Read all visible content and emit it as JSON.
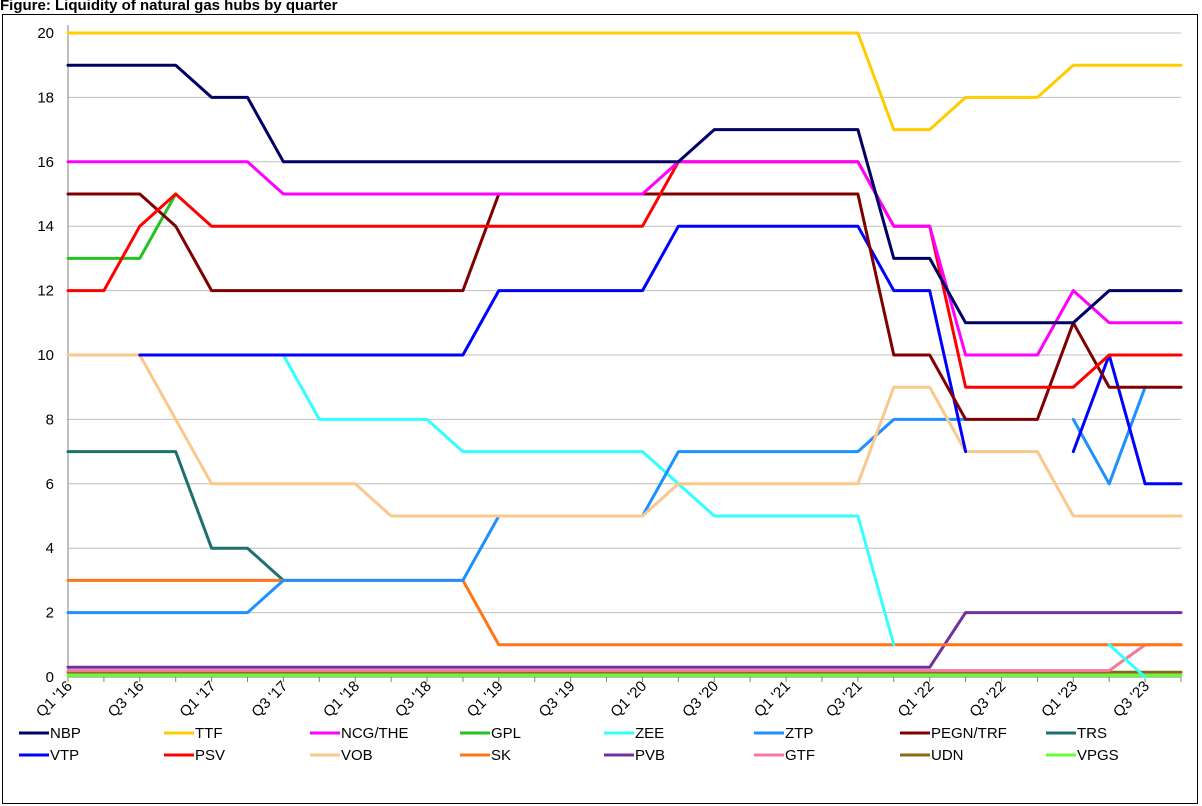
{
  "caption": "Figure: Liquidity of natural gas hubs by quarter",
  "chart_data": {
    "type": "line",
    "xlabel": "",
    "ylabel": "",
    "ylim": [
      0,
      20
    ],
    "yticks": [
      0,
      2,
      4,
      6,
      8,
      10,
      12,
      14,
      16,
      18,
      20
    ],
    "grid": "horizontal",
    "legend_placement": "bottom",
    "x": [
      "Q1 '16",
      "Q2 '16",
      "Q3 '16",
      "Q4 '16",
      "Q1 '17",
      "Q2 '17",
      "Q3 '17",
      "Q4 '17",
      "Q1 '18",
      "Q2 '18",
      "Q3 '18",
      "Q4 '18",
      "Q1 '19",
      "Q2 '19",
      "Q3 '19",
      "Q4 '19",
      "Q1 '20",
      "Q2 '20",
      "Q3 '20",
      "Q4 '20",
      "Q1 '21",
      "Q2 '21",
      "Q3 '21",
      "Q4 '21",
      "Q1 '22",
      "Q2 '22",
      "Q3 '22",
      "Q4 '22",
      "Q1 '23",
      "Q2 '23",
      "Q3 '23",
      "Q4 '23"
    ],
    "xtick_labels": [
      "Q1 '16",
      "Q3 '16",
      "Q1 '17",
      "Q3 '17",
      "Q1 '18",
      "Q3 '18",
      "Q1 '19",
      "Q3 '19",
      "Q1 '20",
      "Q3 '20",
      "Q1 '21",
      "Q3 '21",
      "Q1 '22",
      "Q3 '22",
      "Q1 '23",
      "Q3 '23"
    ],
    "series": [
      {
        "name": "UDN",
        "color": "#8B6914",
        "values": [
          0.15,
          0.15,
          0.15,
          0.15,
          0.15,
          0.15,
          0.15,
          0.15,
          0.15,
          0.15,
          0.15,
          0.15,
          0.15,
          0.15,
          0.15,
          0.15,
          0.15,
          0.15,
          0.15,
          0.15,
          0.15,
          0.15,
          0.15,
          0.15,
          0.15,
          0.15,
          0.15,
          0.15,
          0.15,
          0.15,
          0.15,
          0.15
        ]
      },
      {
        "name": "VPGS",
        "color": "#66FF33",
        "values": [
          0.05,
          0.05,
          0.05,
          0.05,
          0.05,
          0.05,
          0.05,
          0.05,
          0.05,
          0.05,
          0.05,
          0.05,
          0.05,
          0.05,
          0.05,
          0.05,
          0.05,
          0.05,
          0.05,
          0.05,
          0.05,
          0.05,
          0.05,
          0.05,
          0.05,
          0.05,
          0.05,
          0.05,
          0.05,
          0.05,
          0.05,
          0.05
        ]
      },
      {
        "name": "GTF",
        "color": "#F4799A",
        "values": [
          0.2,
          0.2,
          0.2,
          0.2,
          0.2,
          0.2,
          0.2,
          0.2,
          0.2,
          0.2,
          0.2,
          0.2,
          0.2,
          0.2,
          0.2,
          0.2,
          0.2,
          0.2,
          0.2,
          0.2,
          0.2,
          0.2,
          0.2,
          0.2,
          0.2,
          0.2,
          0.2,
          0.2,
          0.2,
          0.2,
          1,
          1
        ]
      },
      {
        "name": "PVB",
        "color": "#7030A0",
        "values": [
          0.3,
          0.3,
          0.3,
          0.3,
          0.3,
          0.3,
          0.3,
          0.3,
          0.3,
          0.3,
          0.3,
          0.3,
          0.3,
          0.3,
          0.3,
          0.3,
          0.3,
          0.3,
          0.3,
          0.3,
          0.3,
          0.3,
          0.3,
          0.3,
          0.3,
          2,
          2,
          2,
          2,
          2,
          2,
          2
        ]
      },
      {
        "name": "TRS",
        "color": "#1F6F6F",
        "values": [
          7,
          7,
          7,
          7,
          4,
          4,
          3,
          null,
          null,
          null,
          null,
          null,
          null,
          null,
          null,
          null,
          null,
          null,
          null,
          null,
          null,
          null,
          null,
          null,
          null,
          null,
          null,
          null,
          null,
          null,
          null,
          null
        ]
      },
      {
        "name": "GPL",
        "color": "#22C322",
        "values": [
          13,
          13,
          13,
          15,
          null,
          null,
          null,
          null,
          null,
          null,
          null,
          null,
          null,
          null,
          null,
          null,
          null,
          null,
          null,
          null,
          null,
          null,
          null,
          null,
          null,
          null,
          null,
          null,
          null,
          null,
          null,
          null
        ]
      },
      {
        "name": "SK",
        "color": "#FF7518",
        "values": [
          3,
          3,
          3,
          3,
          3,
          3,
          3,
          3,
          3,
          3,
          3,
          3,
          1,
          1,
          1,
          1,
          1,
          1,
          1,
          1,
          1,
          1,
          1,
          1,
          1,
          1,
          1,
          1,
          1,
          1,
          1,
          1
        ]
      },
      {
        "name": "ZEE",
        "color": "#33FFFF",
        "values": [
          null,
          null,
          null,
          null,
          null,
          null,
          10,
          8,
          8,
          8,
          8,
          7,
          7,
          7,
          7,
          7,
          7,
          6,
          5,
          5,
          5,
          5,
          5,
          1,
          null,
          null,
          null,
          null,
          null,
          1,
          0,
          null
        ]
      },
      {
        "name": "ZTP",
        "color": "#1E90FF",
        "values": [
          2,
          2,
          2,
          2,
          2,
          2,
          3,
          3,
          3,
          3,
          3,
          3,
          5,
          5,
          5,
          5,
          5,
          7,
          7,
          7,
          7,
          7,
          7,
          8,
          8,
          8,
          null,
          null,
          8,
          6,
          9,
          null
        ]
      },
      {
        "name": "VOB",
        "color": "#FAC88C",
        "values": [
          10,
          10,
          10,
          8,
          6,
          6,
          6,
          6,
          6,
          5,
          5,
          5,
          5,
          5,
          5,
          5,
          5,
          6,
          6,
          6,
          6,
          6,
          6,
          9,
          9,
          7,
          7,
          7,
          5,
          5,
          5,
          5
        ]
      },
      {
        "name": "VTP",
        "color": "#0000FF",
        "values": [
          null,
          null,
          10,
          10,
          10,
          10,
          10,
          10,
          10,
          10,
          10,
          10,
          12,
          12,
          12,
          12,
          12,
          14,
          14,
          14,
          14,
          14,
          14,
          12,
          12,
          7,
          null,
          null,
          7,
          10,
          6,
          6
        ]
      },
      {
        "name": "PEGN/TRF",
        "color": "#800000",
        "values": [
          15,
          15,
          15,
          14,
          12,
          12,
          12,
          12,
          12,
          12,
          12,
          12,
          15,
          15,
          15,
          15,
          15,
          15,
          15,
          15,
          15,
          15,
          15,
          10,
          10,
          8,
          8,
          8,
          11,
          9,
          9,
          9
        ]
      },
      {
        "name": "PSV",
        "color": "#FF0000",
        "values": [
          12,
          12,
          14,
          15,
          14,
          14,
          14,
          14,
          14,
          14,
          14,
          14,
          14,
          14,
          14,
          14,
          14,
          16,
          16,
          16,
          16,
          16,
          16,
          14,
          14,
          9,
          9,
          9,
          9,
          10,
          10,
          10
        ]
      },
      {
        "name": "NCG/THE",
        "color": "#FF00FF",
        "values": [
          16,
          16,
          16,
          16,
          16,
          16,
          15,
          15,
          15,
          15,
          15,
          15,
          15,
          15,
          15,
          15,
          15,
          16,
          16,
          16,
          16,
          16,
          16,
          14,
          14,
          10,
          10,
          10,
          12,
          11,
          11,
          11
        ]
      },
      {
        "name": "NBP",
        "color": "#000066",
        "values": [
          19,
          19,
          19,
          19,
          18,
          18,
          16,
          16,
          16,
          16,
          16,
          16,
          16,
          16,
          16,
          16,
          16,
          16,
          17,
          17,
          17,
          17,
          17,
          13,
          13,
          11,
          11,
          11,
          11,
          12,
          12,
          12
        ]
      },
      {
        "name": "TTF",
        "color": "#FFCC00",
        "values": [
          20,
          20,
          20,
          20,
          20,
          20,
          20,
          20,
          20,
          20,
          20,
          20,
          20,
          20,
          20,
          20,
          20,
          20,
          20,
          20,
          20,
          20,
          20,
          17,
          17,
          18,
          18,
          18,
          19,
          19,
          19,
          19
        ]
      }
    ],
    "legend": [
      {
        "name": "NBP",
        "color": "#000066"
      },
      {
        "name": "TTF",
        "color": "#FFCC00"
      },
      {
        "name": "NCG/THE",
        "color": "#FF00FF"
      },
      {
        "name": "GPL",
        "color": "#22C322"
      },
      {
        "name": "ZEE",
        "color": "#33FFFF"
      },
      {
        "name": "ZTP",
        "color": "#1E90FF"
      },
      {
        "name": "PEGN/TRF",
        "color": "#800000"
      },
      {
        "name": "TRS",
        "color": "#1F6F6F"
      },
      {
        "name": "VTP",
        "color": "#0000FF"
      },
      {
        "name": "PSV",
        "color": "#FF0000"
      },
      {
        "name": "VOB",
        "color": "#FAC88C"
      },
      {
        "name": "SK",
        "color": "#FF7518"
      },
      {
        "name": "PVB",
        "color": "#7030A0"
      },
      {
        "name": "GTF",
        "color": "#F4799A"
      },
      {
        "name": "UDN",
        "color": "#8B6914"
      },
      {
        "name": "VPGS",
        "color": "#66FF33"
      }
    ]
  }
}
